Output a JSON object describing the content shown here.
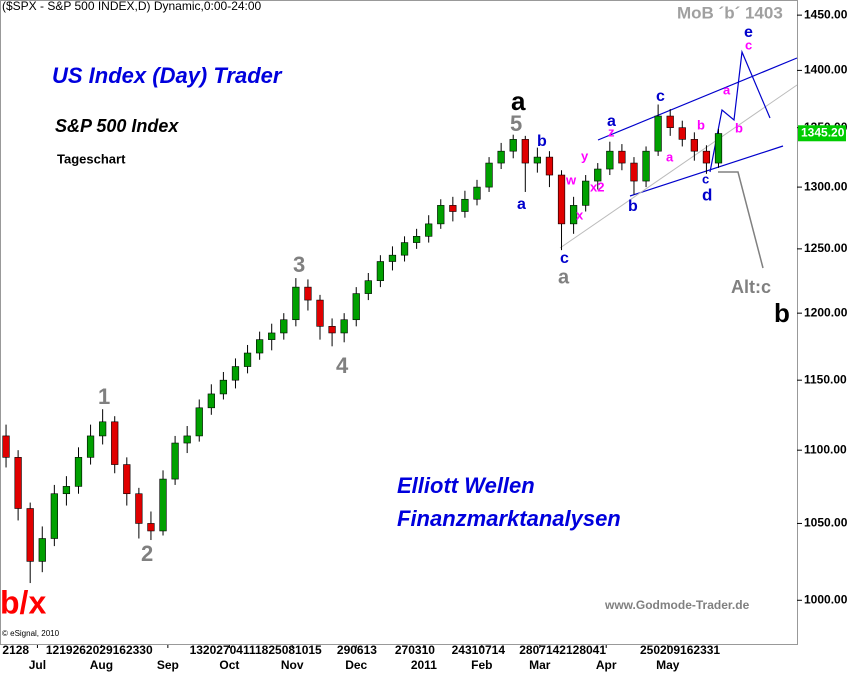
{
  "chart_data": {
    "type": "candlestick",
    "header": "($SPX - S&P 500 INDEX,D) Dynamic,0:00-24:00",
    "title": "US Index (Day) Trader",
    "subtitle": "S&P 500 Index",
    "note": "Tageschart",
    "target_note": "MoB ´b´ 1403",
    "brand": [
      "Elliott Wellen",
      "Finanzmarktanalysen"
    ],
    "website": "www.Godmode-Trader.de",
    "copyright": "© eSignal, 2010",
    "log_scale": true,
    "up_color": "#00a000",
    "down_color": "#e00000",
    "xlim": [
      0,
      66
    ],
    "ylim": [
      972,
      1464
    ],
    "yticks": [
      {
        "value": 1450,
        "label": "1450.00"
      },
      {
        "value": 1400,
        "label": "1400.00"
      },
      {
        "value": 1350,
        "label": "1350.00"
      },
      {
        "value": 1300,
        "label": "1300.00"
      },
      {
        "value": 1250,
        "label": "1250.00"
      },
      {
        "value": 1200,
        "label": "1200.00"
      },
      {
        "value": 1150,
        "label": "1150.00"
      },
      {
        "value": 1100,
        "label": "1100.00"
      },
      {
        "value": 1050,
        "label": "1050.00"
      },
      {
        "value": 1000,
        "label": "1000.00"
      }
    ],
    "xticks": [
      {
        "value": 3.1,
        "label": "Jul"
      },
      {
        "value": 8.4,
        "label": "Aug"
      },
      {
        "value": 13.9,
        "label": "Sep"
      },
      {
        "value": 19,
        "label": "Oct"
      },
      {
        "value": 24.2,
        "label": "Nov"
      },
      {
        "value": 29.5,
        "label": "Dec"
      },
      {
        "value": 35.1,
        "label": "2011"
      },
      {
        "value": 39.9,
        "label": "Feb"
      },
      {
        "value": 44.7,
        "label": "Mar"
      },
      {
        "value": 50.2,
        "label": "Apr"
      },
      {
        "value": 55.3,
        "label": "May"
      }
    ],
    "xtick_days": [
      {
        "value": 0.2,
        "label": "2128"
      },
      {
        "value": 3.8,
        "label": "1219262029162330"
      },
      {
        "value": 15.7,
        "label": "13202704111825081015"
      },
      {
        "value": 27.9,
        "label": "290613"
      },
      {
        "value": 32.7,
        "label": "270310"
      },
      {
        "value": 37.4,
        "label": "24310714"
      },
      {
        "value": 43,
        "label": "2807142128041"
      },
      {
        "value": 53,
        "label": "250209162331"
      }
    ],
    "last_price": {
      "value": 1345.2,
      "label": "1345.20"
    },
    "open": [
      1110,
      1095,
      1060,
      1025,
      1040,
      1070,
      1075,
      1095,
      1110,
      1120,
      1090,
      1070,
      1050,
      1045,
      1080,
      1105,
      1110,
      1130,
      1140,
      1150,
      1160,
      1170,
      1180,
      1185,
      1195,
      1220,
      1210,
      1190,
      1185,
      1195,
      1215,
      1225,
      1240,
      1245,
      1255,
      1260,
      1270,
      1285,
      1280,
      1290,
      1300,
      1320,
      1330,
      1340,
      1320,
      1325,
      1310,
      1270,
      1285,
      1305,
      1315,
      1330,
      1320,
      1305,
      1330,
      1360,
      1350,
      1340,
      1330,
      1320
    ],
    "high": [
      1118,
      1100,
      1064,
      1048,
      1076,
      1082,
      1102,
      1118,
      1129,
      1124,
      1095,
      1074,
      1058,
      1086,
      1110,
      1117,
      1136,
      1147,
      1156,
      1166,
      1176,
      1186,
      1192,
      1200,
      1227,
      1226,
      1214,
      1196,
      1200,
      1220,
      1231,
      1245,
      1252,
      1260,
      1266,
      1277,
      1290,
      1292,
      1297,
      1306,
      1325,
      1337,
      1344,
      1343,
      1333,
      1330,
      1314,
      1292,
      1310,
      1320,
      1338,
      1336,
      1325,
      1334,
      1370,
      1366,
      1356,
      1346,
      1335,
      1349
    ],
    "low": [
      1088,
      1052,
      1011,
      1018,
      1035,
      1062,
      1070,
      1090,
      1104,
      1084,
      1062,
      1040,
      1039,
      1042,
      1076,
      1098,
      1106,
      1125,
      1136,
      1144,
      1155,
      1165,
      1172,
      1180,
      1190,
      1202,
      1180,
      1175,
      1178,
      1190,
      1210,
      1220,
      1233,
      1240,
      1250,
      1255,
      1266,
      1272,
      1275,
      1285,
      1296,
      1315,
      1324,
      1296,
      1312,
      1300,
      1249,
      1262,
      1280,
      1298,
      1310,
      1314,
      1294,
      1300,
      1326,
      1343,
      1334,
      1322,
      1311,
      1316
    ],
    "close": [
      1095,
      1060,
      1025,
      1040,
      1070,
      1075,
      1095,
      1110,
      1120,
      1090,
      1070,
      1050,
      1045,
      1080,
      1105,
      1110,
      1130,
      1140,
      1150,
      1160,
      1170,
      1180,
      1185,
      1195,
      1220,
      1210,
      1190,
      1185,
      1195,
      1215,
      1225,
      1240,
      1245,
      1255,
      1260,
      1270,
      1285,
      1280,
      1290,
      1300,
      1320,
      1330,
      1340,
      1320,
      1325,
      1310,
      1270,
      1285,
      1305,
      1315,
      1330,
      1320,
      1305,
      1330,
      1360,
      1350,
      1340,
      1330,
      1320,
      1345
    ],
    "annotations": [
      {
        "text": "b/x",
        "color": "#ff0000"
      },
      {
        "text": "1",
        "color": "#808080"
      },
      {
        "text": "2",
        "color": "#808080"
      },
      {
        "text": "3",
        "color": "#808080"
      },
      {
        "text": "4",
        "color": "#808080"
      },
      {
        "text": "5",
        "color": "#808080"
      },
      {
        "text": "a",
        "color": "#000000"
      },
      {
        "text": "a",
        "color": "#0000cc"
      },
      {
        "text": "b",
        "color": "#0000cc"
      },
      {
        "text": "c",
        "color": "#0000cc"
      },
      {
        "text": "a",
        "color": "#808080"
      },
      {
        "text": "w",
        "color": "#ff00ff"
      },
      {
        "text": "x",
        "color": "#ff00ff"
      },
      {
        "text": "y",
        "color": "#ff00ff"
      },
      {
        "text": "x2",
        "color": "#ff00ff"
      },
      {
        "text": "z",
        "color": "#ff00ff"
      },
      {
        "text": "a",
        "color": "#0000cc"
      },
      {
        "text": "b",
        "color": "#0000cc"
      },
      {
        "text": "c",
        "color": "#0000cc"
      },
      {
        "text": "a",
        "color": "#ff00ff"
      },
      {
        "text": "b",
        "color": "#ff00ff"
      },
      {
        "text": "c",
        "color": "#0000cc"
      },
      {
        "text": "d",
        "color": "#0000cc"
      },
      {
        "text": "a",
        "color": "#ff00ff"
      },
      {
        "text": "b",
        "color": "#ff00ff"
      },
      {
        "text": "c",
        "color": "#ff00ff"
      },
      {
        "text": "e",
        "color": "#0000cc"
      },
      {
        "text": "Alt:c",
        "color": "#808080"
      },
      {
        "text": "b",
        "color": "#000000"
      }
    ]
  }
}
